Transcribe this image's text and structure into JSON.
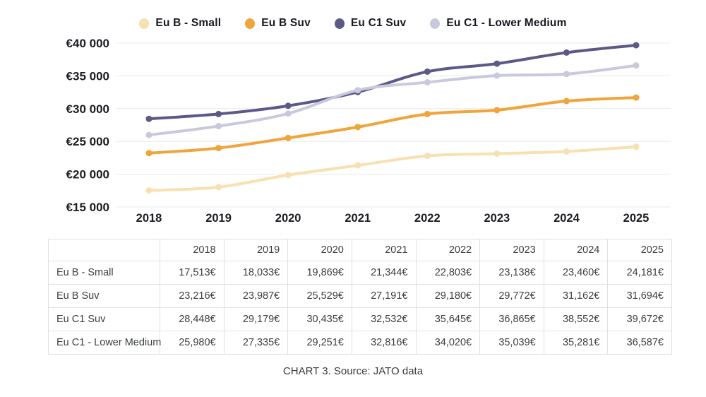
{
  "legend": [
    {
      "label": "Eu B - Small",
      "color": "#f8e0b0"
    },
    {
      "label": "Eu B Suv",
      "color": "#f0a43a"
    },
    {
      "label": "Eu C1 Suv",
      "color": "#5c5989"
    },
    {
      "label": "Eu C1 - Lower Medium",
      "color": "#c9c9dd"
    }
  ],
  "chart_data": {
    "type": "line",
    "x": [
      "2018",
      "2019",
      "2020",
      "2021",
      "2022",
      "2023",
      "2024",
      "2025"
    ],
    "series": [
      {
        "name": "Eu B - Small",
        "color": "#f8e0b0",
        "values": [
          17513,
          18033,
          19869,
          21344,
          22803,
          23138,
          23460,
          24181
        ]
      },
      {
        "name": "Eu B Suv",
        "color": "#f0a43a",
        "values": [
          23216,
          23987,
          25529,
          27191,
          29180,
          29772,
          31162,
          31694
        ]
      },
      {
        "name": "Eu C1 Suv",
        "color": "#5c5989",
        "values": [
          28448,
          29179,
          30435,
          32532,
          35645,
          36865,
          38552,
          39672
        ]
      },
      {
        "name": "Eu C1 - Lower Medium",
        "color": "#c9c9dd",
        "values": [
          25980,
          27335,
          29251,
          32816,
          34020,
          35039,
          35281,
          36587
        ]
      }
    ],
    "y_ticks": [
      {
        "value": 40000,
        "label": "€40 000"
      },
      {
        "value": 35000,
        "label": "€35 000"
      },
      {
        "value": 30000,
        "label": "€30 000"
      },
      {
        "value": 25000,
        "label": "€25 000"
      },
      {
        "value": 20000,
        "label": "€20 000"
      },
      {
        "value": 15000,
        "label": "€15 000"
      }
    ],
    "ylim": [
      15000,
      40000
    ],
    "grid": true,
    "legend_position": "top",
    "title": "",
    "xlabel": "",
    "ylabel": ""
  },
  "table": {
    "columns": [
      "",
      "2018",
      "2019",
      "2020",
      "2021",
      "2022",
      "2023",
      "2024",
      "2025"
    ],
    "rows": [
      {
        "label": "Eu B - Small",
        "values": [
          "17,513€",
          "18,033€",
          "19,869€",
          "21,344€",
          "22,803€",
          "23,138€",
          "23,460€",
          "24,181€"
        ]
      },
      {
        "label": "Eu B Suv",
        "values": [
          "23,216€",
          "23,987€",
          "25,529€",
          "27,191€",
          "29,180€",
          "29,772€",
          "31,162€",
          "31,694€"
        ]
      },
      {
        "label": "Eu C1 Suv",
        "values": [
          "28,448€",
          "29,179€",
          "30,435€",
          "32,532€",
          "35,645€",
          "36,865€",
          "38,552€",
          "39,672€"
        ]
      },
      {
        "label": "Eu C1 - Lower Medium",
        "values": [
          "25,980€",
          "27,335€",
          "29,251€",
          "32,816€",
          "34,020€",
          "35,039€",
          "35,281€",
          "36,587€"
        ]
      }
    ]
  },
  "caption": "CHART 3. Source: JATO data"
}
